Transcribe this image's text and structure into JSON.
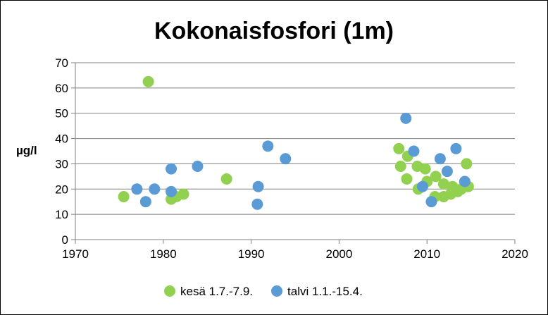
{
  "chart_data": {
    "type": "scatter",
    "title": "Kokonaisfosfori (1m)",
    "xlabel": "",
    "ylabel": "µg/l",
    "xlim": [
      1970,
      2020
    ],
    "ylim": [
      0,
      70
    ],
    "x_ticks": [
      1970,
      1980,
      1990,
      2000,
      2010,
      2020
    ],
    "y_ticks": [
      0,
      10,
      20,
      30,
      40,
      50,
      60,
      70
    ],
    "grid": "horizontal",
    "legend_position": "bottom",
    "series": [
      {
        "name": "kesä 1.7.-7.9.",
        "color": "#92d050",
        "points": [
          [
            1975.5,
            17
          ],
          [
            1978.3,
            62.5
          ],
          [
            1980.9,
            16
          ],
          [
            1981.5,
            17
          ],
          [
            1982.3,
            18
          ],
          [
            1987.2,
            24
          ],
          [
            2006.8,
            36
          ],
          [
            2007.0,
            29
          ],
          [
            2007.8,
            33
          ],
          [
            2007.7,
            24
          ],
          [
            2008.9,
            29
          ],
          [
            2009.0,
            20
          ],
          [
            2009.8,
            28
          ],
          [
            2010.0,
            23
          ],
          [
            2010.9,
            17
          ],
          [
            2011.0,
            25
          ],
          [
            2011.9,
            22
          ],
          [
            2011.9,
            17
          ],
          [
            2012.7,
            18
          ],
          [
            2012.9,
            21
          ],
          [
            2013.5,
            19
          ],
          [
            2013.9,
            20
          ],
          [
            2014.5,
            30
          ],
          [
            2014.7,
            21
          ]
        ]
      },
      {
        "name": "talvi 1.1.-15.4.",
        "color": "#5b9bd5",
        "points": [
          [
            1977.0,
            20
          ],
          [
            1978.0,
            15
          ],
          [
            1979.0,
            20
          ],
          [
            1980.9,
            28
          ],
          [
            1980.9,
            19
          ],
          [
            1983.9,
            29
          ],
          [
            1990.7,
            14
          ],
          [
            1990.8,
            21
          ],
          [
            1991.9,
            37
          ],
          [
            1993.9,
            32
          ],
          [
            2007.6,
            48
          ],
          [
            2008.5,
            35
          ],
          [
            2009.5,
            21
          ],
          [
            2010.5,
            15
          ],
          [
            2011.5,
            32
          ],
          [
            2012.3,
            27
          ],
          [
            2013.3,
            36
          ],
          [
            2014.3,
            23
          ]
        ]
      }
    ]
  }
}
